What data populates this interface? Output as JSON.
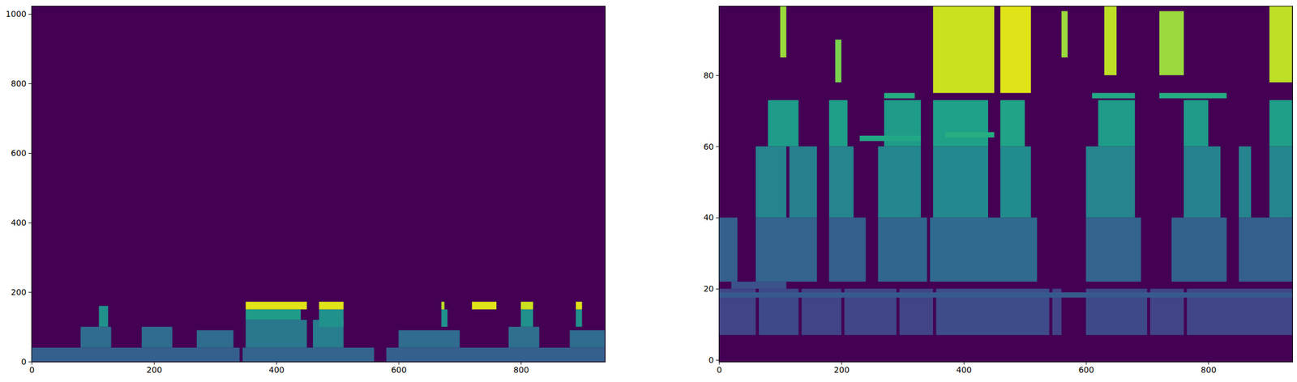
{
  "chart_data": [
    {
      "type": "heatmap",
      "xlim": [
        -0.5,
        937.5
      ],
      "ylim": [
        -0.5,
        1023.5
      ],
      "xticks": [
        0,
        200,
        400,
        600,
        800
      ],
      "yticks": [
        0,
        200,
        400,
        600,
        800,
        1000
      ],
      "color_range": [
        0,
        1
      ],
      "cells": [
        [
          0,
          340,
          0,
          40,
          0.3
        ],
        [
          345,
          560,
          0,
          40,
          0.32
        ],
        [
          580,
          937,
          0,
          40,
          0.3
        ],
        [
          80,
          130,
          40,
          100,
          0.35
        ],
        [
          180,
          230,
          40,
          100,
          0.35
        ],
        [
          270,
          330,
          40,
          90,
          0.35
        ],
        [
          350,
          450,
          40,
          120,
          0.4
        ],
        [
          460,
          510,
          40,
          120,
          0.42
        ],
        [
          600,
          700,
          40,
          90,
          0.35
        ],
        [
          780,
          830,
          40,
          100,
          0.36
        ],
        [
          880,
          937,
          40,
          90,
          0.35
        ],
        [
          110,
          125,
          100,
          160,
          0.5
        ],
        [
          350,
          440,
          120,
          150,
          0.55
        ],
        [
          470,
          510,
          100,
          150,
          0.5
        ],
        [
          670,
          680,
          100,
          150,
          0.5
        ],
        [
          800,
          820,
          100,
          150,
          0.5
        ],
        [
          890,
          900,
          100,
          150,
          0.5
        ],
        [
          350,
          450,
          150,
          172,
          0.95
        ],
        [
          470,
          510,
          150,
          172,
          0.95
        ],
        [
          670,
          675,
          150,
          172,
          0.9
        ],
        [
          720,
          760,
          150,
          172,
          0.95
        ],
        [
          800,
          820,
          150,
          172,
          0.92
        ],
        [
          890,
          900,
          150,
          172,
          0.95
        ]
      ]
    },
    {
      "type": "heatmap",
      "xlim": [
        -0.5,
        937.5
      ],
      "ylim": [
        -0.5,
        99.5
      ],
      "xticks": [
        0,
        200,
        400,
        600,
        800
      ],
      "yticks": [
        0,
        20,
        40,
        60,
        80
      ],
      "color_range": [
        0,
        1
      ],
      "cells": [
        [
          0,
          60,
          7,
          20,
          0.2
        ],
        [
          65,
          130,
          7,
          20,
          0.22
        ],
        [
          135,
          200,
          7,
          20,
          0.2
        ],
        [
          205,
          290,
          7,
          20,
          0.21
        ],
        [
          295,
          350,
          7,
          20,
          0.2
        ],
        [
          355,
          540,
          7,
          20,
          0.23
        ],
        [
          545,
          560,
          7,
          20,
          0.2
        ],
        [
          600,
          700,
          7,
          20,
          0.22
        ],
        [
          705,
          760,
          7,
          20,
          0.2
        ],
        [
          765,
          937,
          7,
          20,
          0.21
        ],
        [
          0,
          937,
          17.5,
          19,
          0.28
        ],
        [
          20,
          110,
          20,
          22,
          0.25
        ],
        [
          0,
          30,
          22,
          40,
          0.3
        ],
        [
          60,
          160,
          22,
          40,
          0.32
        ],
        [
          180,
          240,
          22,
          40,
          0.3
        ],
        [
          260,
          340,
          22,
          40,
          0.33
        ],
        [
          345,
          520,
          22,
          40,
          0.34
        ],
        [
          600,
          690,
          22,
          40,
          0.32
        ],
        [
          740,
          830,
          22,
          40,
          0.31
        ],
        [
          850,
          937,
          22,
          40,
          0.3
        ],
        [
          60,
          110,
          40,
          60,
          0.45
        ],
        [
          115,
          160,
          40,
          60,
          0.43
        ],
        [
          180,
          220,
          40,
          60,
          0.45
        ],
        [
          260,
          330,
          40,
          60,
          0.46
        ],
        [
          350,
          440,
          40,
          60,
          0.47
        ],
        [
          460,
          510,
          40,
          60,
          0.48
        ],
        [
          600,
          680,
          40,
          60,
          0.45
        ],
        [
          760,
          820,
          40,
          60,
          0.44
        ],
        [
          850,
          870,
          40,
          60,
          0.45
        ],
        [
          900,
          937,
          40,
          60,
          0.46
        ],
        [
          80,
          130,
          60,
          73,
          0.55
        ],
        [
          180,
          210,
          60,
          73,
          0.56
        ],
        [
          270,
          330,
          60,
          73,
          0.55
        ],
        [
          350,
          440,
          60,
          73,
          0.57
        ],
        [
          460,
          500,
          60,
          73,
          0.58
        ],
        [
          620,
          680,
          60,
          73,
          0.55
        ],
        [
          760,
          800,
          60,
          73,
          0.55
        ],
        [
          900,
          937,
          60,
          73,
          0.56
        ],
        [
          230,
          330,
          61.5,
          63,
          0.6
        ],
        [
          370,
          450,
          62.5,
          64,
          0.62
        ],
        [
          720,
          830,
          73.5,
          75,
          0.62
        ],
        [
          270,
          320,
          73.5,
          75,
          0.62
        ],
        [
          610,
          680,
          73.5,
          75,
          0.6
        ],
        [
          350,
          450,
          75,
          99.5,
          0.92
        ],
        [
          460,
          510,
          75,
          99.5,
          0.95
        ],
        [
          190,
          200,
          78,
          90,
          0.8
        ],
        [
          630,
          650,
          80,
          99.5,
          0.9
        ],
        [
          720,
          760,
          80,
          98,
          0.85
        ],
        [
          900,
          937,
          78,
          99.5,
          0.9
        ],
        [
          560,
          570,
          85,
          98,
          0.85
        ],
        [
          100,
          110,
          85,
          99.5,
          0.85
        ]
      ]
    }
  ]
}
